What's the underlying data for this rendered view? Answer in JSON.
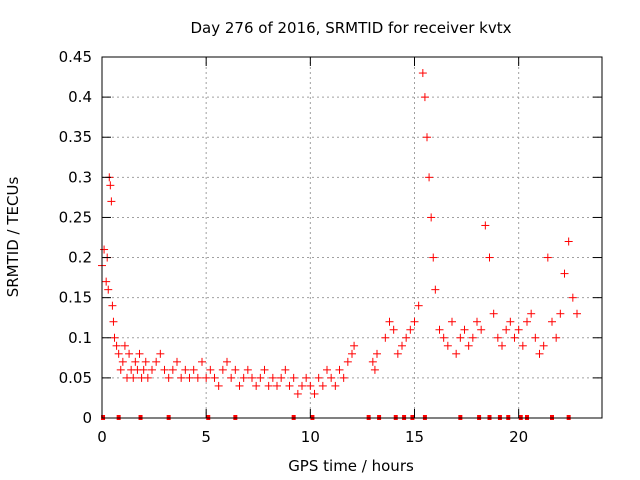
{
  "chart_data": {
    "type": "scatter",
    "title": "Day 276 of 2016, SRMTID for receiver kvtx",
    "xlabel": "GPS time / hours",
    "ylabel": "SRMTID / TECUs",
    "xlim": [
      0,
      24
    ],
    "ylim": [
      0,
      0.45
    ],
    "xticks": [
      0,
      5,
      10,
      15,
      20
    ],
    "yticks": [
      0,
      0.05,
      0.1,
      0.15,
      0.2,
      0.25,
      0.3,
      0.35,
      0.4,
      0.45
    ],
    "grid": true,
    "marker": "+",
    "color": "#ff0000",
    "series": [
      {
        "name": "SRMTID",
        "x": [
          0.0,
          0.1,
          0.2,
          0.25,
          0.3,
          0.35,
          0.4,
          0.45,
          0.5,
          0.55,
          0.6,
          0.7,
          0.8,
          0.9,
          1.0,
          1.1,
          1.2,
          1.3,
          1.4,
          1.5,
          1.6,
          1.7,
          1.8,
          1.9,
          2.0,
          2.1,
          2.2,
          2.4,
          2.6,
          2.8,
          3.0,
          3.2,
          3.4,
          3.6,
          3.8,
          4.0,
          4.2,
          4.4,
          4.6,
          4.8,
          5.0,
          5.2,
          5.4,
          5.6,
          5.8,
          6.0,
          6.2,
          6.4,
          6.6,
          6.8,
          7.0,
          7.2,
          7.4,
          7.6,
          7.8,
          8.0,
          8.2,
          8.4,
          8.6,
          8.8,
          9.0,
          9.2,
          9.4,
          9.6,
          9.8,
          10.0,
          10.2,
          10.4,
          10.6,
          10.8,
          11.0,
          11.2,
          11.4,
          11.6,
          11.8,
          12.0,
          12.1,
          13.0,
          13.1,
          13.2,
          13.6,
          13.8,
          14.0,
          14.2,
          14.4,
          14.6,
          14.8,
          15.0,
          15.2,
          15.4,
          15.5,
          15.6,
          15.7,
          15.8,
          15.9,
          16.0,
          16.2,
          16.4,
          16.6,
          16.8,
          17.0,
          17.2,
          17.4,
          17.6,
          17.8,
          18.0,
          18.2,
          18.4,
          18.6,
          18.8,
          19.0,
          19.2,
          19.4,
          19.6,
          19.8,
          20.0,
          20.2,
          20.4,
          20.6,
          20.8,
          21.0,
          21.2,
          21.4,
          21.6,
          21.8,
          22.0,
          22.2,
          22.4,
          22.6,
          22.8
        ],
        "y": [
          0.19,
          0.21,
          0.17,
          0.2,
          0.16,
          0.3,
          0.29,
          0.27,
          0.14,
          0.12,
          0.1,
          0.09,
          0.08,
          0.06,
          0.07,
          0.09,
          0.05,
          0.08,
          0.06,
          0.05,
          0.07,
          0.06,
          0.08,
          0.05,
          0.06,
          0.07,
          0.05,
          0.06,
          0.07,
          0.08,
          0.06,
          0.05,
          0.06,
          0.07,
          0.05,
          0.06,
          0.05,
          0.06,
          0.05,
          0.07,
          0.05,
          0.06,
          0.05,
          0.04,
          0.06,
          0.07,
          0.05,
          0.06,
          0.04,
          0.05,
          0.06,
          0.05,
          0.04,
          0.05,
          0.06,
          0.04,
          0.05,
          0.04,
          0.05,
          0.06,
          0.04,
          0.05,
          0.03,
          0.04,
          0.05,
          0.04,
          0.03,
          0.05,
          0.04,
          0.06,
          0.05,
          0.04,
          0.06,
          0.05,
          0.07,
          0.08,
          0.09,
          0.07,
          0.06,
          0.08,
          0.1,
          0.12,
          0.11,
          0.08,
          0.09,
          0.1,
          0.11,
          0.12,
          0.14,
          0.43,
          0.4,
          0.35,
          0.3,
          0.25,
          0.2,
          0.16,
          0.11,
          0.1,
          0.09,
          0.12,
          0.08,
          0.1,
          0.11,
          0.09,
          0.1,
          0.12,
          0.11,
          0.24,
          0.2,
          0.13,
          0.1,
          0.09,
          0.11,
          0.12,
          0.1,
          0.11,
          0.09,
          0.12,
          0.13,
          0.1,
          0.08,
          0.09,
          0.2,
          0.12,
          0.1,
          0.13,
          0.18,
          0.22,
          0.15,
          0.13
        ]
      }
    ],
    "baseline_x": [
      0.05,
      0.8,
      1.85,
      3.2,
      5.1,
      6.4,
      9.2,
      10.1,
      12.8,
      13.3,
      14.1,
      14.5,
      14.9,
      15.5,
      17.2,
      18.1,
      18.6,
      19.1,
      19.5,
      20.1,
      20.4,
      21.6,
      22.4
    ]
  }
}
